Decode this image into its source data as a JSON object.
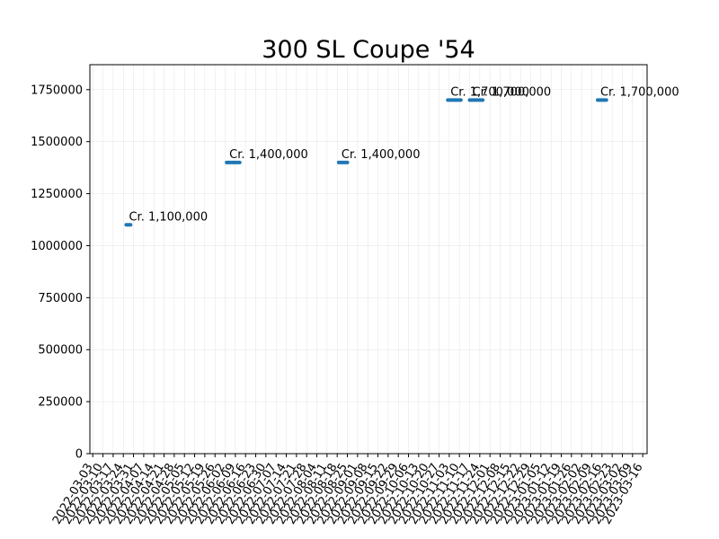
{
  "chart_data": {
    "type": "line",
    "title": "300 SL Coupe '54",
    "xlabel": "",
    "ylabel": "",
    "ylim": [
      0,
      1870000
    ],
    "yticks": [
      0,
      250000,
      500000,
      750000,
      1000000,
      1250000,
      1500000,
      1750000
    ],
    "ytick_labels": [
      "0",
      "250000",
      "500000",
      "750000",
      "1000000",
      "1250000",
      "1500000",
      "1750000"
    ],
    "xlim": [
      "2022-03-01",
      "2023-03-19"
    ],
    "xticks": [
      "2022-03-03",
      "2022-03-10",
      "2022-03-17",
      "2022-03-24",
      "2022-03-31",
      "2022-04-07",
      "2022-04-14",
      "2022-04-21",
      "2022-04-28",
      "2022-05-05",
      "2022-05-12",
      "2022-05-19",
      "2022-05-26",
      "2022-06-02",
      "2022-06-09",
      "2022-06-16",
      "2022-06-23",
      "2022-06-30",
      "2022-07-07",
      "2022-07-14",
      "2022-07-21",
      "2022-07-28",
      "2022-08-04",
      "2022-08-11",
      "2022-08-18",
      "2022-08-25",
      "2022-09-01",
      "2022-09-08",
      "2022-09-15",
      "2022-09-22",
      "2022-09-29",
      "2022-10-06",
      "2022-10-13",
      "2022-10-20",
      "2022-10-27",
      "2022-11-03",
      "2022-11-10",
      "2022-11-17",
      "2022-11-24",
      "2022-12-01",
      "2022-12-08",
      "2022-12-15",
      "2022-12-22",
      "2022-12-29",
      "2023-01-05",
      "2023-01-12",
      "2023-01-19",
      "2023-01-26",
      "2023-02-02",
      "2023-02-09",
      "2023-02-16",
      "2023-02-23",
      "2023-03-02",
      "2023-03-09",
      "2023-03-16"
    ],
    "grid": true,
    "color": "#1f77b4",
    "segments": [
      {
        "start": "2022-03-26",
        "end": "2022-03-29",
        "value": 1100000,
        "label": "Cr. 1,100,000"
      },
      {
        "start": "2022-06-03",
        "end": "2022-06-12",
        "value": 1400000,
        "label": "Cr. 1,400,000"
      },
      {
        "start": "2022-08-19",
        "end": "2022-08-25",
        "value": 1400000,
        "label": "Cr. 1,400,000"
      },
      {
        "start": "2022-11-02",
        "end": "2022-11-11",
        "value": 1700000,
        "label": "Cr. 1,700,000"
      },
      {
        "start": "2022-11-17",
        "end": "2022-11-26",
        "value": 1700000,
        "label": "Cr. 1,700,000"
      },
      {
        "start": "2023-02-13",
        "end": "2023-02-19",
        "value": 1700000,
        "label": "Cr. 1,700,000"
      }
    ]
  }
}
